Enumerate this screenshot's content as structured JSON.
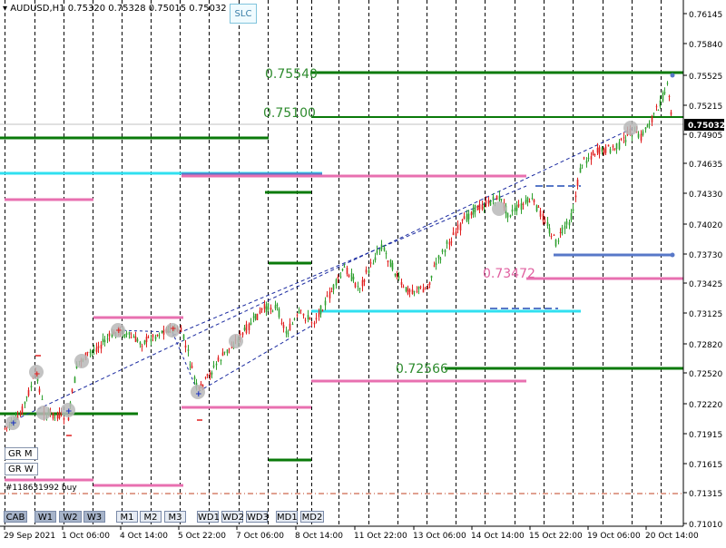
{
  "header": {
    "symbol_timeframe": "AUDUSD,H1",
    "ohlc": "0.75320 0.75328 0.75015 0.75032"
  },
  "slc_button": "SLC",
  "current_price": "0.75032",
  "price_axis": [
    "0.76145",
    "0.75840",
    "0.75525",
    "0.75215",
    "0.74905",
    "0.74635",
    "0.74330",
    "0.74020",
    "0.73730",
    "0.73425",
    "0.73125",
    "0.72820",
    "0.72520",
    "0.72220",
    "0.71915",
    "0.71615",
    "0.71315",
    "0.71010"
  ],
  "time_axis": [
    "29 Sep 2021",
    "1 Oct 06:00",
    "4 Oct 14:00",
    "5 Oct 22:00",
    "7 Oct 06:00",
    "8 Oct 14:00",
    "11 Oct 22:00",
    "13 Oct 06:00",
    "14 Oct 14:00",
    "15 Oct 22:00",
    "19 Oct 06:00",
    "20 Oct 14:00"
  ],
  "level_labels": [
    {
      "text": "0.75540",
      "color": "#2e8b2e"
    },
    {
      "text": "0.75100",
      "color": "#2e8b2e"
    },
    {
      "text": "0.73472",
      "color": "#e060a0"
    },
    {
      "text": "0.72566",
      "color": "#2e8b2e"
    }
  ],
  "gr_buttons": [
    "GR M",
    "GR W"
  ],
  "order_label": "#118631992 buy",
  "timeframe_buttons": [
    {
      "label": "CAB",
      "state": "on"
    },
    {
      "label": "W1",
      "state": "on"
    },
    {
      "label": "W2",
      "state": "on"
    },
    {
      "label": "W3",
      "state": "on"
    },
    {
      "label": "M1",
      "state": "off"
    },
    {
      "label": "M2",
      "state": "off"
    },
    {
      "label": "M3",
      "state": "off"
    },
    {
      "label": "WD1",
      "state": "off"
    },
    {
      "label": "WD2",
      "state": "off"
    },
    {
      "label": "WD3",
      "state": "off"
    },
    {
      "label": "MD1",
      "state": "off"
    },
    {
      "label": "MD2",
      "state": "off"
    }
  ],
  "colors": {
    "bull": "#2ea02e",
    "bear": "#e02020",
    "green_level": "#0a7a0a",
    "pink_level": "#e870b0",
    "cyan_level": "#30e0f0",
    "blue_level": "#5878c8",
    "channel": "#1a2aa0"
  }
}
